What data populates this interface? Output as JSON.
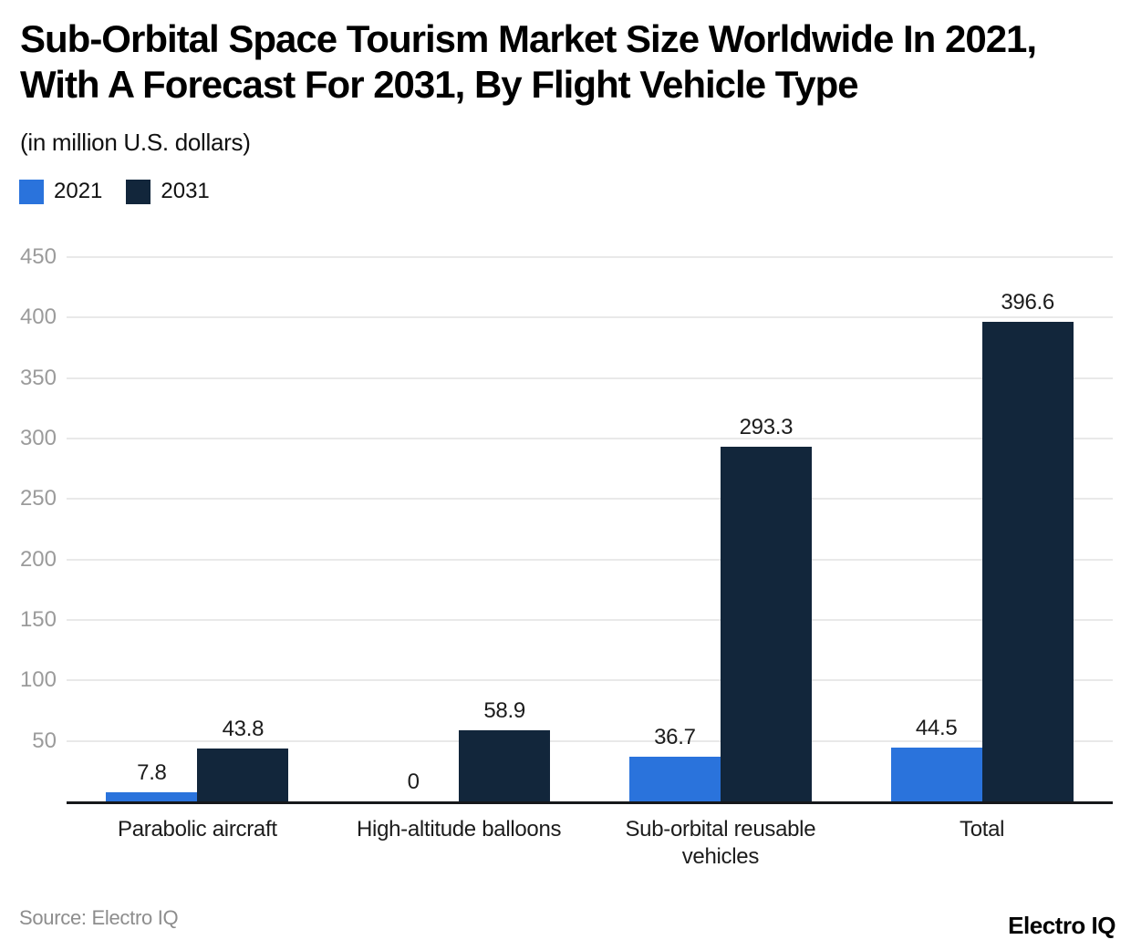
{
  "header": {
    "title_lines": [
      "Sub-Orbital Space Tourism Market Size Worldwide In 2021,",
      "With A Forecast For 2031, By Flight Vehicle Type"
    ],
    "subtitle": "(in million U.S. dollars)"
  },
  "footer": {
    "source": "Source: Electro IQ",
    "brand": "Electro IQ"
  },
  "chart_data": {
    "type": "bar",
    "title": "Sub-Orbital Space Tourism Market Size Worldwide In 2021, With A Forecast For 2031, By Flight Vehicle Type",
    "subtitle": "(in million U.S. dollars)",
    "categories": [
      "Parabolic aircraft",
      "High-altitude balloons",
      "Sub-orbital reusable vehicles",
      "Total"
    ],
    "series": [
      {
        "name": "2021",
        "color": "#2A73DC",
        "values": [
          7.8,
          0,
          36.7,
          44.5
        ],
        "labels": [
          "7.8",
          "0",
          "36.7",
          "44.5"
        ]
      },
      {
        "name": "2031",
        "color": "#12263B",
        "values": [
          43.8,
          58.9,
          293.3,
          396.6
        ],
        "labels": [
          "43.8",
          "58.9",
          "293.3",
          "396.6"
        ]
      }
    ],
    "xlabel": "",
    "ylabel": "",
    "ylim": [
      0,
      450
    ],
    "yticks": [
      50,
      100,
      150,
      200,
      250,
      300,
      350,
      400,
      450
    ],
    "grid": "horizontal",
    "legend_position": "top-left",
    "value_labels_shown": true,
    "colors": {
      "grid": "#E9E9E9",
      "axis_line": "#16181B",
      "tick_label": "#9B9B9B",
      "value_label": "#1C1C1C",
      "category_label": "#1C1C1C"
    }
  }
}
